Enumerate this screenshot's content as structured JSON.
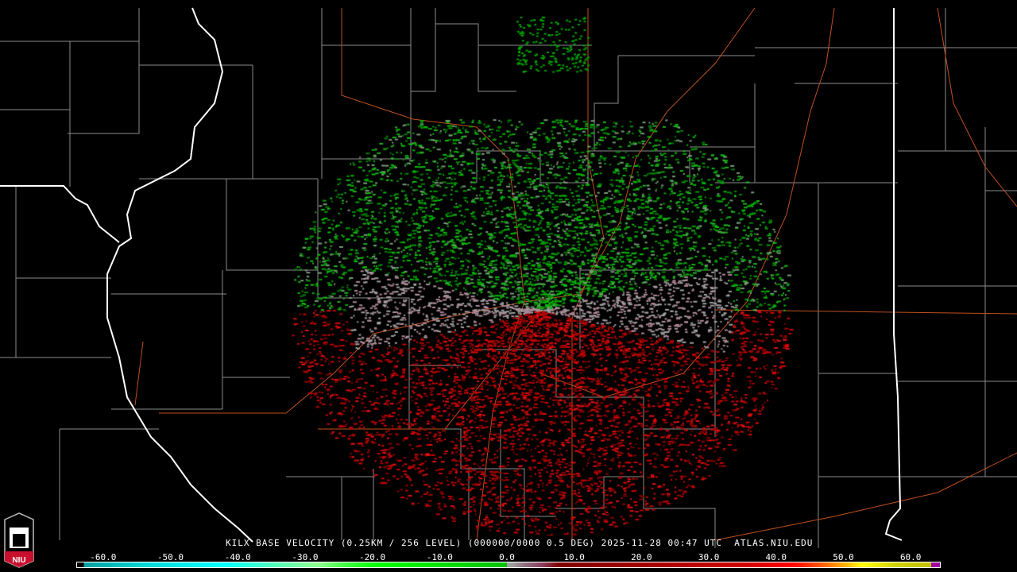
{
  "caption": "KILX BASE VELOCITY (0.25KM / 256 LEVEL) (000000/0000 0.5 DEG) 2025-11-28 00:47 UTC  ATLAS.NIU.EDU",
  "logo": {
    "text": "NIU",
    "colors": {
      "red": "#c8102e",
      "white": "#ffffff"
    }
  },
  "colorbar": {
    "min": -64,
    "max": 64,
    "ticks": [
      "-60.0",
      "-50.0",
      "-40.0",
      "-30.0",
      "-20.0",
      "-10.0",
      "0.0",
      "10.0",
      "20.0",
      "30.0",
      "40.0",
      "50.0",
      "60.0"
    ],
    "tick_values": [
      -60,
      -50,
      -40,
      -30,
      -20,
      -10,
      0,
      10,
      20,
      30,
      40,
      50,
      60
    ]
  },
  "colors": {
    "state_border": "#ffffff",
    "county_border": "#8c8c8c",
    "highway": "#c0501e",
    "inbound": "#00c000",
    "outbound": "#d00000",
    "near_zero": "#a0a0a0"
  }
}
